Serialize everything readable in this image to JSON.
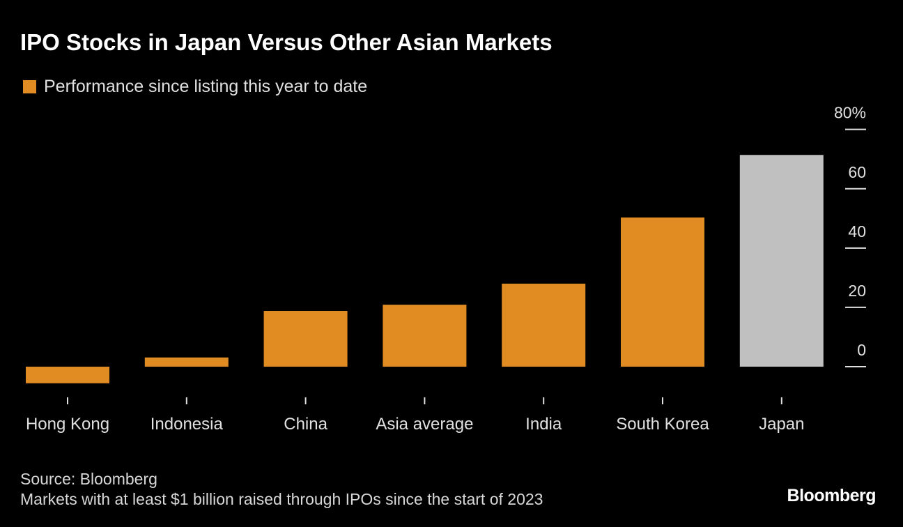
{
  "chart_data": {
    "type": "bar",
    "title": "IPO Stocks in Japan Versus Other Asian Markets",
    "legend": [
      {
        "name": "Performance since listing this year to date",
        "color": "#e08c23"
      }
    ],
    "categories": [
      "Hong Kong",
      "Indonesia",
      "China",
      "Asia average",
      "India",
      "South Korea",
      "Japan"
    ],
    "values": [
      -5.6,
      3.1,
      18.8,
      20.9,
      28.0,
      50.3,
      71.4
    ],
    "colors": [
      "#e08c23",
      "#e08c23",
      "#e08c23",
      "#e08c23",
      "#e08c23",
      "#e08c23",
      "#c0c0c0"
    ],
    "yticks": [
      0,
      20,
      40,
      60,
      80
    ],
    "ytick_labels": [
      "0",
      "20",
      "40",
      "60",
      "80%"
    ],
    "ylim": [
      -10,
      80
    ],
    "yaxis_position": "right",
    "grid": false,
    "legend_placement": "top-left",
    "xlabel": "",
    "ylabel": ""
  },
  "footer": {
    "source": "Source: Bloomberg",
    "note": "Markets with at least $1 billion raised through IPOs since the start of 2023",
    "logo": "Bloomberg"
  }
}
